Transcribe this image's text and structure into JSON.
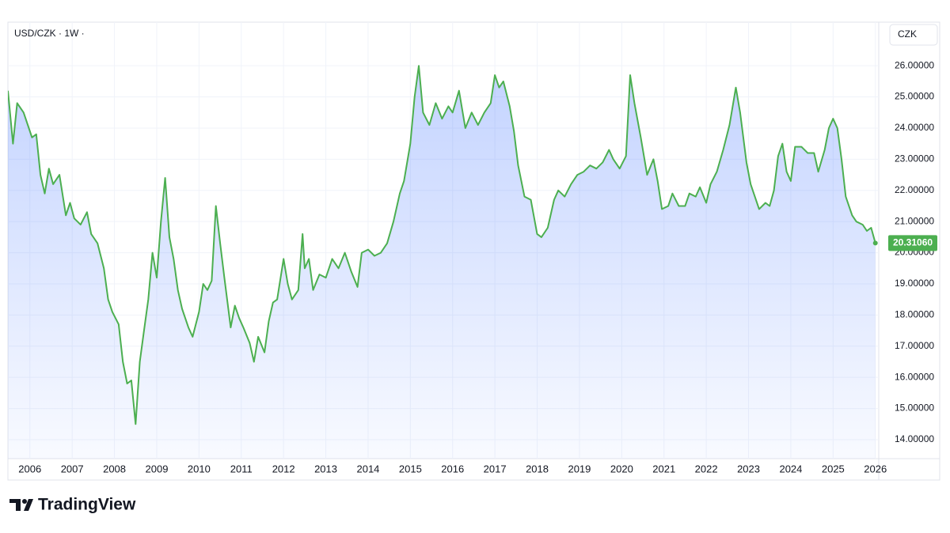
{
  "chart_data": {
    "type": "area",
    "title": "USD/CZK · 1W ·",
    "currency": "CZK",
    "brand": "TradingView",
    "color": "#4caf50",
    "fill_color": "#2962ff",
    "grid": true,
    "x": [
      2005.48,
      2005.6,
      2005.7,
      2005.85,
      2005.95,
      2006.05,
      2006.15,
      2006.25,
      2006.35,
      2006.45,
      2006.55,
      2006.7,
      2006.85,
      2006.95,
      2007.05,
      2007.2,
      2007.35,
      2007.45,
      2007.6,
      2007.75,
      2007.85,
      2007.95,
      2008.1,
      2008.2,
      2008.3,
      2008.4,
      2008.5,
      2008.6,
      2008.7,
      2008.8,
      2008.9,
      2009.0,
      2009.1,
      2009.2,
      2009.3,
      2009.4,
      2009.5,
      2009.6,
      2009.75,
      2009.85,
      2010.0,
      2010.1,
      2010.2,
      2010.3,
      2010.4,
      2010.5,
      2010.6,
      2010.75,
      2010.85,
      2010.95,
      2011.05,
      2011.2,
      2011.3,
      2011.4,
      2011.55,
      2011.65,
      2011.75,
      2011.85,
      2012.0,
      2012.1,
      2012.2,
      2012.35,
      2012.45,
      2012.5,
      2012.6,
      2012.7,
      2012.85,
      2013.0,
      2013.15,
      2013.3,
      2013.45,
      2013.6,
      2013.75,
      2013.85,
      2014.0,
      2014.15,
      2014.3,
      2014.45,
      2014.6,
      2014.75,
      2014.85,
      2015.0,
      2015.1,
      2015.2,
      2015.3,
      2015.45,
      2015.6,
      2015.75,
      2015.9,
      2016.0,
      2016.15,
      2016.3,
      2016.45,
      2016.6,
      2016.75,
      2016.9,
      2017.0,
      2017.1,
      2017.2,
      2017.35,
      2017.45,
      2017.55,
      2017.7,
      2017.85,
      2018.0,
      2018.1,
      2018.25,
      2018.4,
      2018.5,
      2018.65,
      2018.8,
      2018.95,
      2019.1,
      2019.25,
      2019.4,
      2019.55,
      2019.7,
      2019.8,
      2019.95,
      2020.1,
      2020.2,
      2020.3,
      2020.45,
      2020.6,
      2020.75,
      2020.85,
      2020.95,
      2021.1,
      2021.2,
      2021.35,
      2021.5,
      2021.6,
      2021.75,
      2021.85,
      2022.0,
      2022.1,
      2022.25,
      2022.4,
      2022.55,
      2022.7,
      2022.8,
      2022.95,
      2023.05,
      2023.15,
      2023.25,
      2023.4,
      2023.5,
      2023.6,
      2023.7,
      2023.8,
      2023.9,
      2024.0,
      2024.1,
      2024.25,
      2024.4,
      2024.55,
      2024.65,
      2024.8,
      2024.9,
      2025.0,
      2025.1,
      2025.2,
      2025.3,
      2025.45,
      2025.55,
      2025.7,
      2025.8,
      2025.9,
      2026.0
    ],
    "values": [
      25.2,
      23.5,
      24.8,
      24.5,
      24.1,
      23.7,
      23.8,
      22.5,
      21.9,
      22.7,
      22.2,
      22.5,
      21.2,
      21.6,
      21.1,
      20.9,
      21.3,
      20.6,
      20.3,
      19.5,
      18.5,
      18.1,
      17.7,
      16.5,
      15.8,
      15.9,
      14.5,
      16.5,
      17.5,
      18.5,
      20.0,
      19.2,
      21.0,
      22.4,
      20.5,
      19.8,
      18.8,
      18.2,
      17.6,
      17.3,
      18.1,
      19.0,
      18.8,
      19.1,
      21.5,
      20.3,
      19.2,
      17.6,
      18.3,
      17.9,
      17.6,
      17.1,
      16.5,
      17.3,
      16.8,
      17.8,
      18.4,
      18.5,
      19.8,
      19.0,
      18.5,
      18.8,
      20.6,
      19.5,
      19.8,
      18.8,
      19.3,
      19.2,
      19.8,
      19.5,
      20.0,
      19.4,
      18.9,
      20.0,
      20.1,
      19.9,
      20.0,
      20.3,
      21.0,
      21.9,
      22.3,
      23.5,
      25.0,
      26.0,
      24.5,
      24.1,
      24.8,
      24.3,
      24.7,
      24.5,
      25.2,
      24.0,
      24.5,
      24.1,
      24.5,
      24.8,
      25.7,
      25.3,
      25.5,
      24.7,
      23.9,
      22.8,
      21.8,
      21.7,
      20.6,
      20.5,
      20.8,
      21.7,
      22.0,
      21.8,
      22.2,
      22.5,
      22.6,
      22.8,
      22.7,
      22.9,
      23.3,
      23.0,
      22.7,
      23.1,
      25.7,
      24.8,
      23.7,
      22.5,
      23.0,
      22.3,
      21.4,
      21.5,
      21.9,
      21.5,
      21.5,
      21.9,
      21.8,
      22.1,
      21.6,
      22.2,
      22.6,
      23.3,
      24.1,
      25.3,
      24.5,
      22.9,
      22.2,
      21.8,
      21.4,
      21.6,
      21.5,
      22.0,
      23.1,
      23.5,
      22.6,
      22.3,
      23.4,
      23.4,
      23.2,
      23.2,
      22.6,
      23.3,
      24.0,
      24.3,
      24.0,
      23.0,
      21.8,
      21.2,
      21.0,
      20.9,
      20.7,
      20.8,
      20.3106
    ],
    "last_label": "20.31060",
    "xlim": [
      2005.48,
      2026.08
    ],
    "xticks": [
      2006,
      2007,
      2008,
      2009,
      2010,
      2011,
      2012,
      2013,
      2014,
      2015,
      2016,
      2017,
      2018,
      2019,
      2020,
      2021,
      2022,
      2023,
      2024,
      2025,
      2026
    ],
    "ylim": [
      13.39,
      27.4
    ],
    "yticks": [
      {
        "value": 14,
        "label": "14.00000"
      },
      {
        "value": 15,
        "label": "15.00000"
      },
      {
        "value": 16,
        "label": "16.00000"
      },
      {
        "value": 17,
        "label": "17.00000"
      },
      {
        "value": 18,
        "label": "18.00000"
      },
      {
        "value": 19,
        "label": "19.00000"
      },
      {
        "value": 20,
        "label": "20.00000"
      },
      {
        "value": 21,
        "label": "21.00000"
      },
      {
        "value": 22,
        "label": "22.00000"
      },
      {
        "value": 23,
        "label": "23.00000"
      },
      {
        "value": 24,
        "label": "24.00000"
      },
      {
        "value": 25,
        "label": "25.00000"
      },
      {
        "value": 26,
        "label": "26.00000"
      }
    ]
  }
}
